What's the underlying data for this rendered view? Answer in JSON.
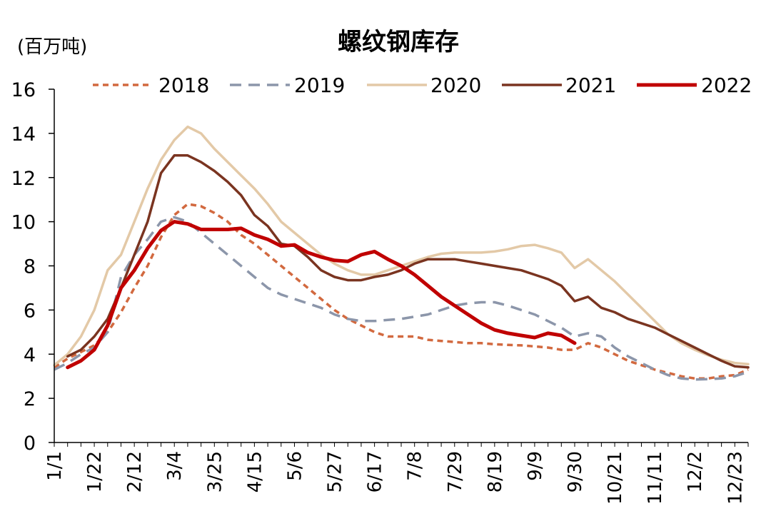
{
  "chart_data": {
    "type": "line",
    "title": "螺纹钢库存",
    "unit_label": "(百万吨)",
    "ylabel": "百万吨",
    "xlabel": "",
    "ylim": [
      0,
      16
    ],
    "yticks": [
      0,
      2,
      4,
      6,
      8,
      10,
      12,
      14,
      16
    ],
    "x_range": [
      0,
      52
    ],
    "x_ticks": [
      {
        "label": "1/1",
        "week": 0
      },
      {
        "label": "1/22",
        "week": 3
      },
      {
        "label": "2/12",
        "week": 6
      },
      {
        "label": "3/4",
        "week": 9
      },
      {
        "label": "3/25",
        "week": 12
      },
      {
        "label": "4/15",
        "week": 15
      },
      {
        "label": "5/6",
        "week": 18
      },
      {
        "label": "5/27",
        "week": 21
      },
      {
        "label": "6/17",
        "week": 24
      },
      {
        "label": "7/8",
        "week": 27
      },
      {
        "label": "7/29",
        "week": 30
      },
      {
        "label": "8/19",
        "week": 33
      },
      {
        "label": "9/9",
        "week": 36
      },
      {
        "label": "9/30",
        "week": 39
      },
      {
        "label": "10/21",
        "week": 42
      },
      {
        "label": "11/11",
        "week": 45
      },
      {
        "label": "12/2",
        "week": 48
      },
      {
        "label": "12/23",
        "week": 51
      }
    ],
    "legend_position": "top",
    "series": [
      {
        "name": "2018",
        "color": "#D2693F",
        "style": "dotted",
        "x": [
          0,
          1,
          2,
          3,
          4,
          5,
          6,
          7,
          8,
          9,
          10,
          11,
          12,
          13,
          14,
          15,
          16,
          17,
          18,
          19,
          20,
          21,
          22,
          23,
          24,
          25,
          26,
          27,
          28,
          29,
          30,
          31,
          32,
          33,
          34,
          35,
          36,
          37,
          38,
          39,
          40,
          41,
          42,
          43,
          44,
          45,
          46,
          47,
          48,
          49,
          50,
          51,
          52
        ],
        "values": [
          3.4,
          3.8,
          4.1,
          4.4,
          5.0,
          5.9,
          7.0,
          8.0,
          9.3,
          10.3,
          10.8,
          10.7,
          10.4,
          10.0,
          9.4,
          9.0,
          8.5,
          8.0,
          7.5,
          7.0,
          6.5,
          6.0,
          5.6,
          5.3,
          5.0,
          4.8,
          4.8,
          4.8,
          4.65,
          4.6,
          4.55,
          4.5,
          4.5,
          4.45,
          4.42,
          4.4,
          4.35,
          4.3,
          4.2,
          4.2,
          4.5,
          4.3,
          4.0,
          3.7,
          3.5,
          3.3,
          3.15,
          3.0,
          2.9,
          2.9,
          3.0,
          3.05,
          3.3
        ]
      },
      {
        "name": "2019",
        "color": "#8C96AA",
        "style": "dashed",
        "x": [
          0,
          1,
          2,
          3,
          4,
          5,
          6,
          7,
          8,
          9,
          10,
          11,
          12,
          13,
          14,
          15,
          16,
          17,
          18,
          19,
          20,
          21,
          22,
          23,
          24,
          25,
          26,
          27,
          28,
          29,
          30,
          31,
          32,
          33,
          34,
          35,
          36,
          37,
          38,
          39,
          40,
          41,
          42,
          43,
          44,
          45,
          46,
          47,
          48,
          49,
          50,
          51,
          52
        ],
        "values": [
          3.3,
          3.6,
          4.0,
          4.3,
          5.0,
          7.5,
          8.5,
          9.2,
          10.0,
          10.2,
          10.0,
          9.5,
          9.0,
          8.5,
          8.0,
          7.5,
          7.0,
          6.7,
          6.5,
          6.3,
          6.1,
          5.8,
          5.6,
          5.5,
          5.5,
          5.55,
          5.6,
          5.7,
          5.8,
          6.0,
          6.2,
          6.3,
          6.35,
          6.35,
          6.2,
          6.0,
          5.8,
          5.5,
          5.2,
          4.8,
          4.95,
          4.8,
          4.3,
          3.9,
          3.6,
          3.3,
          3.05,
          2.9,
          2.85,
          2.87,
          2.9,
          3.0,
          3.2
        ]
      },
      {
        "name": "2020",
        "color": "#E3C9A7",
        "style": "solid",
        "x": [
          0,
          1,
          2,
          3,
          4,
          5,
          6,
          7,
          8,
          9,
          10,
          11,
          12,
          13,
          14,
          15,
          16,
          17,
          18,
          19,
          20,
          21,
          22,
          23,
          24,
          25,
          26,
          27,
          28,
          29,
          30,
          31,
          32,
          33,
          34,
          35,
          36,
          37,
          38,
          39,
          40,
          41,
          42,
          43,
          44,
          45,
          46,
          47,
          48,
          49,
          50,
          51,
          52
        ],
        "values": [
          3.5,
          4.0,
          4.8,
          6.0,
          7.8,
          8.5,
          10.0,
          11.5,
          12.8,
          13.7,
          14.3,
          14.0,
          13.3,
          12.7,
          12.1,
          11.5,
          10.8,
          10.0,
          9.5,
          9.0,
          8.5,
          8.1,
          7.8,
          7.6,
          7.6,
          7.8,
          8.0,
          8.2,
          8.4,
          8.55,
          8.6,
          8.6,
          8.6,
          8.65,
          8.75,
          8.9,
          8.95,
          8.8,
          8.6,
          7.9,
          8.3,
          7.8,
          7.3,
          6.7,
          6.1,
          5.5,
          4.9,
          4.5,
          4.2,
          3.95,
          3.75,
          3.6,
          3.55
        ]
      },
      {
        "name": "2021",
        "color": "#7A3420",
        "style": "solid",
        "x": [
          1,
          2,
          3,
          4,
          5,
          6,
          7,
          8,
          9,
          10,
          11,
          12,
          13,
          14,
          15,
          16,
          17,
          18,
          19,
          20,
          21,
          22,
          23,
          24,
          25,
          26,
          27,
          28,
          29,
          30,
          31,
          32,
          33,
          34,
          35,
          36,
          37,
          38,
          39,
          40,
          41,
          42,
          43,
          44,
          45,
          46,
          47,
          48,
          49,
          50,
          51,
          52
        ],
        "values": [
          3.9,
          4.2,
          4.8,
          5.6,
          7.0,
          8.5,
          10.0,
          12.2,
          13.0,
          13.0,
          12.7,
          12.3,
          11.8,
          11.2,
          10.3,
          9.8,
          9.0,
          8.9,
          8.4,
          7.8,
          7.5,
          7.35,
          7.35,
          7.5,
          7.6,
          7.8,
          8.1,
          8.3,
          8.3,
          8.3,
          8.2,
          8.1,
          8.0,
          7.9,
          7.8,
          7.6,
          7.4,
          7.1,
          6.4,
          6.6,
          6.1,
          5.9,
          5.6,
          5.4,
          5.2,
          4.9,
          4.6,
          4.3,
          4.0,
          3.7,
          3.45,
          3.4
        ]
      },
      {
        "name": "2022",
        "color": "#C00000",
        "style": "solid",
        "x": [
          1,
          2,
          3,
          4,
          5,
          6,
          7,
          8,
          9,
          10,
          11,
          12,
          13,
          14,
          15,
          16,
          17,
          18,
          19,
          20,
          21,
          22,
          23,
          24,
          25,
          26,
          27,
          28,
          29,
          30,
          31,
          32,
          33,
          34,
          35,
          36,
          37,
          38,
          39
        ],
        "values": [
          3.4,
          3.7,
          4.2,
          5.3,
          7.0,
          7.8,
          8.8,
          9.6,
          10.0,
          9.9,
          9.65,
          9.65,
          9.65,
          9.7,
          9.4,
          9.2,
          8.9,
          8.95,
          8.6,
          8.4,
          8.25,
          8.2,
          8.5,
          8.65,
          8.3,
          8.0,
          7.6,
          7.1,
          6.6,
          6.2,
          5.8,
          5.4,
          5.1,
          4.95,
          4.85,
          4.75,
          4.95,
          4.85,
          4.5
        ]
      }
    ]
  }
}
